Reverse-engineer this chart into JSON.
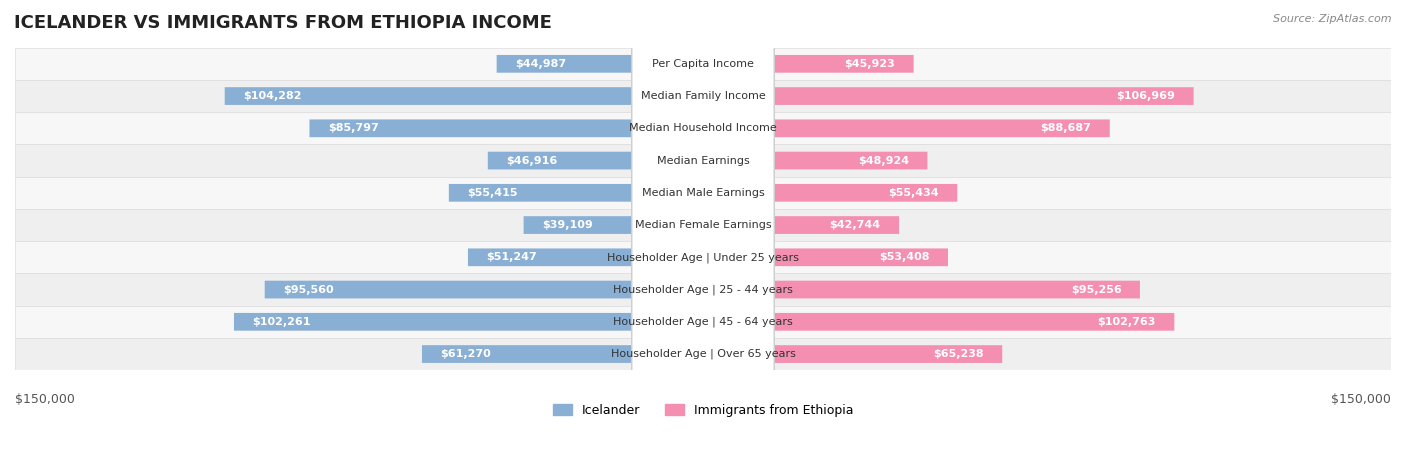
{
  "title": "ICELANDER VS IMMIGRANTS FROM ETHIOPIA INCOME",
  "source": "Source: ZipAtlas.com",
  "categories": [
    "Per Capita Income",
    "Median Family Income",
    "Median Household Income",
    "Median Earnings",
    "Median Male Earnings",
    "Median Female Earnings",
    "Householder Age | Under 25 years",
    "Householder Age | 25 - 44 years",
    "Householder Age | 45 - 64 years",
    "Householder Age | Over 65 years"
  ],
  "icelander_values": [
    44987,
    104282,
    85797,
    46916,
    55415,
    39109,
    51247,
    95560,
    102261,
    61270
  ],
  "ethiopia_values": [
    45923,
    106969,
    88687,
    48924,
    55434,
    42744,
    53408,
    95256,
    102763,
    65238
  ],
  "icelander_color": "#8aafd4",
  "ethiopia_color": "#f48fb1",
  "icelander_label_color": "#5a7fa8",
  "ethiopia_label_color": "#e0608a",
  "bar_bg_color": "#f0f0f0",
  "row_bg_colors": [
    "#f8f8f8",
    "#f0f0f0"
  ],
  "max_value": 150000,
  "legend_icelander": "Icelander",
  "legend_ethiopia": "Immigrants from Ethiopia",
  "title_fontsize": 14,
  "label_fontsize": 9,
  "value_fontsize": 9,
  "background_color": "#ffffff",
  "center_label_bg": "#ffffff",
  "center_label_border": "#cccccc"
}
